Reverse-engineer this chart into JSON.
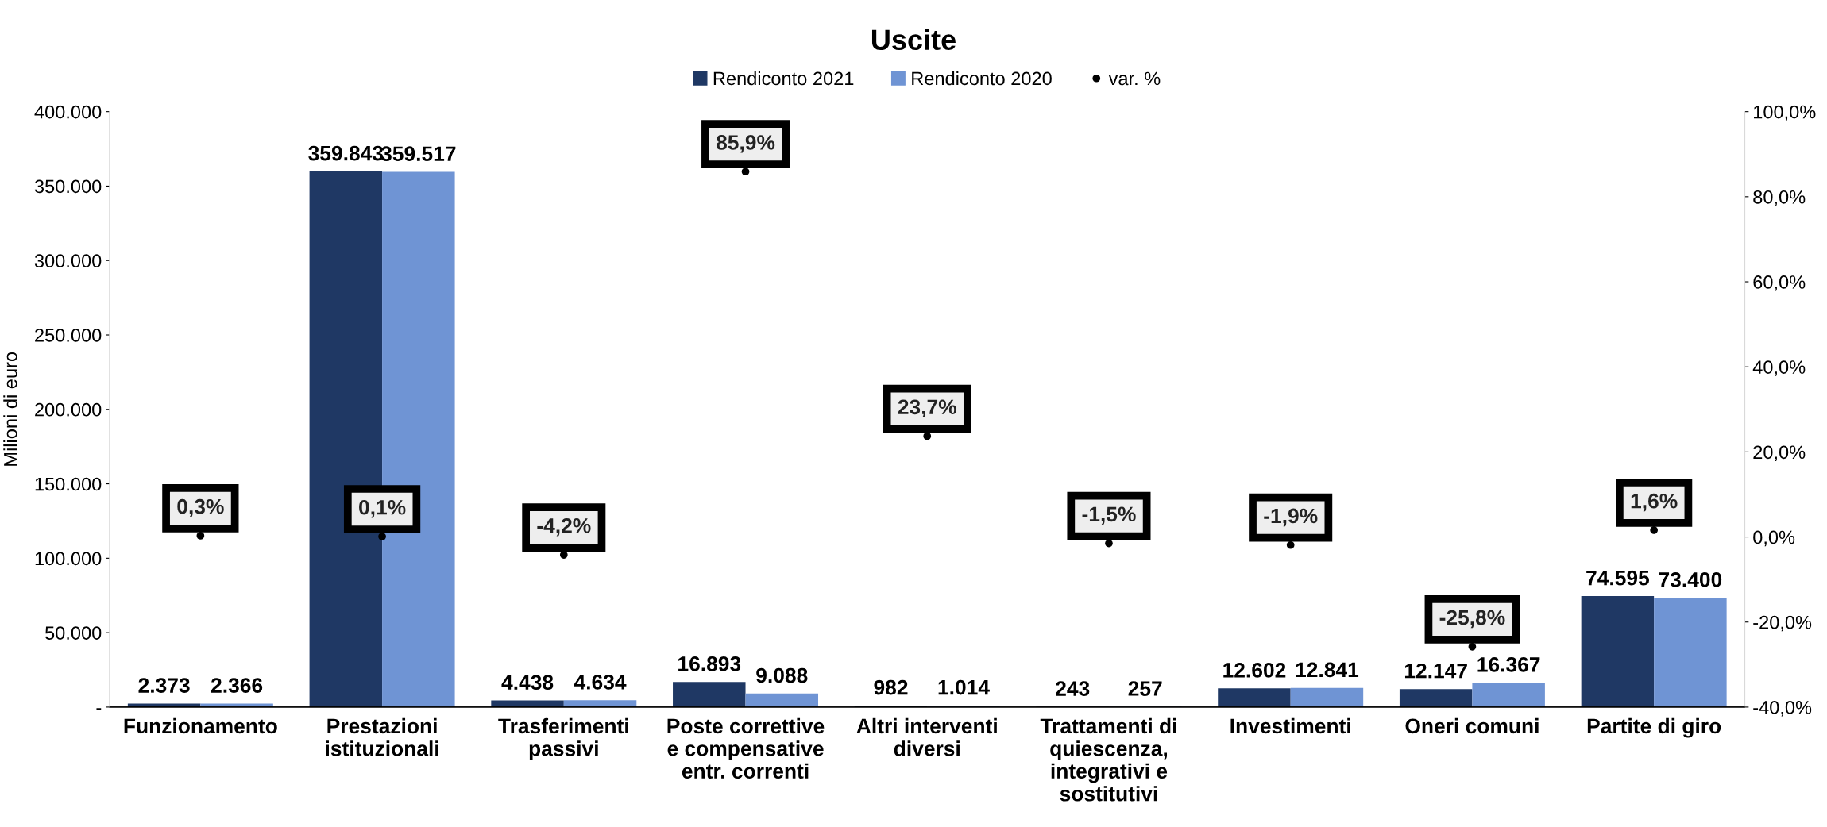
{
  "chart_data": {
    "type": "bar",
    "title": "Uscite",
    "ylabel": "Milioni di euro",
    "categories": [
      "Funzionamento",
      "Prestazioni\nistituzionali",
      "Trasferimenti\npassivi",
      "Poste correttive\ne compensative\nentr. correnti",
      "Altri interventi\ndiversi",
      "Trattamenti di\nquiescenza,\nintegrativi e\nsostitutivi",
      "Investimenti",
      "Oneri comuni",
      "Partite di giro"
    ],
    "series": [
      {
        "name": "Rendiconto 2021",
        "color": "#1f3864",
        "values": [
          2373,
          359843,
          4438,
          16893,
          982,
          243,
          12602,
          12147,
          74595
        ],
        "value_labels": [
          "2.373",
          "359.843",
          "4.438",
          "16.893",
          "982",
          "243",
          "12.602",
          "12.147",
          "74.595"
        ]
      },
      {
        "name": "Rendiconto 2020",
        "color": "#6f94d4",
        "values": [
          2366,
          359517,
          4634,
          9088,
          1014,
          257,
          12841,
          16367,
          73400
        ],
        "value_labels": [
          "2.366",
          "359.517",
          "4.634",
          "9.088",
          "1.014",
          "257",
          "12.841",
          "16.367",
          "73.400"
        ]
      },
      {
        "name": "var. %",
        "type": "scatter",
        "axis": "y2",
        "marker": "circle",
        "color": "#000000",
        "values": [
          0.3,
          0.1,
          -4.2,
          85.9,
          23.7,
          -1.5,
          -1.9,
          -25.8,
          1.6
        ],
        "value_labels": [
          "0,3%",
          "0,1%",
          "-4,2%",
          "85,9%",
          "23,7%",
          "-1,5%",
          "-1,9%",
          "-25,8%",
          "1,6%"
        ]
      }
    ],
    "data_labels": true,
    "ylim": [
      0,
      400000
    ],
    "yticks": [
      {
        "value": 0,
        "label": "-"
      },
      {
        "value": 50000,
        "label": "50.000"
      },
      {
        "value": 100000,
        "label": "100.000"
      },
      {
        "value": 150000,
        "label": "150.000"
      },
      {
        "value": 200000,
        "label": "200.000"
      },
      {
        "value": 250000,
        "label": "250.000"
      },
      {
        "value": 300000,
        "label": "300.000"
      },
      {
        "value": 350000,
        "label": "350.000"
      },
      {
        "value": 400000,
        "label": "400.000"
      }
    ],
    "y2lim": [
      -40,
      100
    ],
    "y2ticks": [
      {
        "value": -40,
        "label": "-40,0%"
      },
      {
        "value": -20,
        "label": "-20,0%"
      },
      {
        "value": 0,
        "label": "0,0%"
      },
      {
        "value": 20,
        "label": "20,0%"
      },
      {
        "value": 40,
        "label": "40,0%"
      },
      {
        "value": 60,
        "label": "60,0%"
      },
      {
        "value": 80,
        "label": "80,0%"
      },
      {
        "value": 100,
        "label": "100,0%"
      }
    ],
    "legend": "top",
    "grid": false
  }
}
